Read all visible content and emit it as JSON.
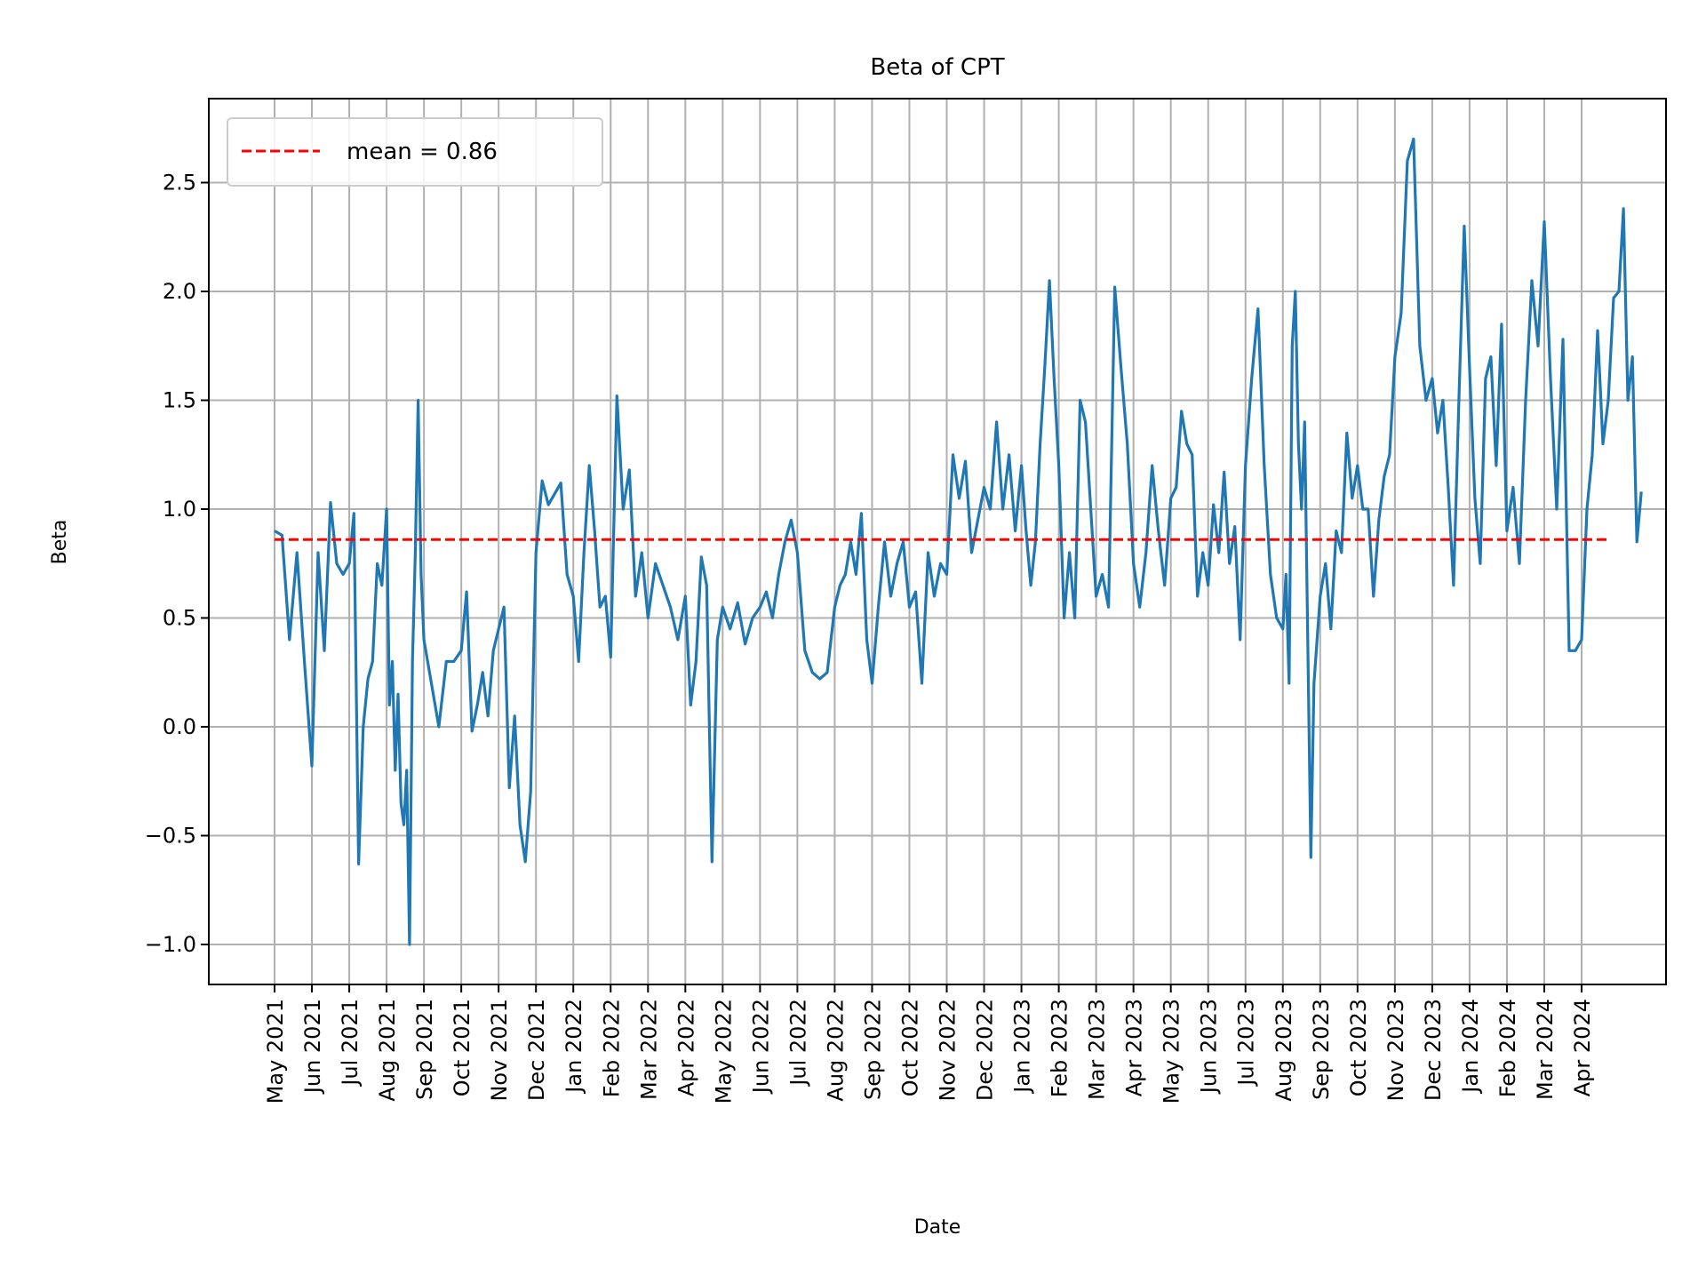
{
  "chart_data": {
    "type": "line",
    "title": "Beta of CPT",
    "xlabel": "Date",
    "ylabel": "Beta",
    "ylim": [
      -1.2,
      2.88
    ],
    "yticks": [
      -1.0,
      -0.5,
      0.0,
      0.5,
      1.0,
      1.5,
      2.0,
      2.5
    ],
    "ytick_labels": [
      "−1.0",
      "−0.5",
      "0.0",
      "0.5",
      "1.0",
      "1.5",
      "2.0",
      "2.5"
    ],
    "xtick_labels": [
      "May 2021",
      "Jun 2021",
      "Jul 2021",
      "Aug 2021",
      "Sep 2021",
      "Oct 2021",
      "Nov 2021",
      "Dec 2021",
      "Jan 2022",
      "Feb 2022",
      "Mar 2022",
      "Apr 2022",
      "May 2022",
      "Jun 2022",
      "Jul 2022",
      "Aug 2022",
      "Sep 2022",
      "Oct 2022",
      "Nov 2022",
      "Dec 2022",
      "Jan 2023",
      "Feb 2023",
      "Mar 2023",
      "Apr 2023",
      "May 2023",
      "Jun 2023",
      "Jul 2023",
      "Aug 2023",
      "Sep 2023",
      "Oct 2023",
      "Nov 2023",
      "Dec 2023",
      "Jan 2024",
      "Feb 2024",
      "Mar 2024",
      "Apr 2024"
    ],
    "grid": true,
    "legend_placement": "top-left",
    "series": [
      {
        "color": "#1f77b4",
        "values_by_month": [
          {
            "month": "2021-05",
            "values": [
              0.9,
              0.88,
              0.4,
              0.8,
              0.3
            ]
          },
          {
            "month": "2021-06",
            "values": [
              -0.18,
              0.8,
              0.35,
              1.03,
              0.75,
              0.7
            ]
          },
          {
            "month": "2021-07",
            "values": [
              0.75,
              0.98,
              -0.63,
              0.0,
              0.22,
              0.3,
              0.75,
              0.65
            ]
          },
          {
            "month": "2021-08",
            "values": [
              1.0,
              0.1,
              0.3,
              -0.2,
              0.15,
              -0.35,
              -0.45,
              -0.2,
              -1.0,
              0.3,
              0.8,
              1.5,
              0.7
            ]
          },
          {
            "month": "2021-09",
            "values": [
              0.4,
              0.2,
              0.0,
              0.3,
              0.3
            ]
          },
          {
            "month": "2021-10",
            "values": [
              0.35,
              0.62,
              -0.02,
              0.1,
              0.25,
              0.05,
              0.35
            ]
          },
          {
            "month": "2021-11",
            "values": [
              0.45,
              0.55,
              -0.28,
              0.05,
              -0.45,
              -0.62,
              -0.3
            ]
          },
          {
            "month": "2021-12",
            "values": [
              0.8,
              1.13,
              1.02,
              1.07,
              1.12,
              0.7
            ]
          },
          {
            "month": "2022-01",
            "values": [
              0.6,
              0.3,
              0.8,
              1.2,
              0.9,
              0.55,
              0.6
            ]
          },
          {
            "month": "2022-02",
            "values": [
              0.32,
              1.52,
              1.0,
              1.18,
              0.6,
              0.8
            ]
          },
          {
            "month": "2022-03",
            "values": [
              0.5,
              0.75,
              0.65,
              0.55,
              0.4
            ]
          },
          {
            "month": "2022-04",
            "values": [
              0.6,
              0.1,
              0.3,
              0.78,
              0.65,
              -0.62,
              0.4
            ]
          },
          {
            "month": "2022-05",
            "values": [
              0.55,
              0.45,
              0.57,
              0.38,
              0.5
            ]
          },
          {
            "month": "2022-06",
            "values": [
              0.55,
              0.62,
              0.5,
              0.7,
              0.85,
              0.95
            ]
          },
          {
            "month": "2022-07",
            "values": [
              0.8,
              0.35,
              0.25,
              0.22,
              0.25
            ]
          },
          {
            "month": "2022-08",
            "values": [
              0.55,
              0.65,
              0.7,
              0.85,
              0.7,
              0.98,
              0.4
            ]
          },
          {
            "month": "2022-09",
            "values": [
              0.2,
              0.55,
              0.85,
              0.6,
              0.75,
              0.85
            ]
          },
          {
            "month": "2022-10",
            "values": [
              0.55,
              0.62,
              0.2,
              0.8,
              0.6,
              0.75
            ]
          },
          {
            "month": "2022-11",
            "values": [
              0.7,
              1.25,
              1.05,
              1.22,
              0.8,
              0.95
            ]
          },
          {
            "month": "2022-12",
            "values": [
              1.1,
              1.0,
              1.4,
              1.0,
              1.25,
              0.9
            ]
          },
          {
            "month": "2023-01",
            "values": [
              1.2,
              0.9,
              0.65,
              0.85,
              1.3,
              1.65,
              2.05,
              1.6
            ]
          },
          {
            "month": "2023-02",
            "values": [
              1.2,
              0.5,
              0.8,
              0.5,
              1.5,
              1.4,
              1.0
            ]
          },
          {
            "month": "2023-03",
            "values": [
              0.6,
              0.7,
              0.55,
              2.02,
              1.65,
              1.3
            ]
          },
          {
            "month": "2023-04",
            "values": [
              0.75,
              0.55,
              0.8,
              1.2,
              0.9,
              0.65
            ]
          },
          {
            "month": "2023-05",
            "values": [
              1.05,
              1.1,
              1.45,
              1.3,
              1.25,
              0.6,
              0.8
            ]
          },
          {
            "month": "2023-06",
            "values": [
              0.65,
              1.02,
              0.8,
              1.17,
              0.75,
              0.92,
              0.4
            ]
          },
          {
            "month": "2023-07",
            "values": [
              1.2,
              1.6,
              1.92,
              1.2,
              0.7,
              0.5
            ]
          },
          {
            "month": "2023-08",
            "values": [
              0.45,
              0.7,
              0.2,
              1.75,
              2.0,
              1.3,
              1.0,
              1.4,
              0.4,
              -0.6,
              0.2,
              0.4
            ]
          },
          {
            "month": "2023-09",
            "values": [
              0.6,
              0.75,
              0.45,
              0.9,
              0.8,
              1.35,
              1.05
            ]
          },
          {
            "month": "2023-10",
            "values": [
              1.2,
              1.0,
              1.0,
              0.6,
              0.95,
              1.15,
              1.25
            ]
          },
          {
            "month": "2023-11",
            "values": [
              1.7,
              1.9,
              2.6,
              2.7,
              1.75,
              1.5
            ]
          },
          {
            "month": "2023-12",
            "values": [
              1.6,
              1.35,
              1.5,
              1.1,
              0.65,
              1.5,
              2.3
            ]
          },
          {
            "month": "2024-01",
            "values": [
              1.65,
              1.05,
              0.75,
              1.6,
              1.7,
              1.2,
              1.85
            ]
          },
          {
            "month": "2024-02",
            "values": [
              0.9,
              1.1,
              0.75,
              1.5,
              2.05,
              1.75
            ]
          },
          {
            "month": "2024-03",
            "values": [
              2.32,
              1.6,
              1.0,
              1.78,
              0.35,
              0.35
            ]
          },
          {
            "month": "2024-04",
            "values": [
              0.4,
              1.0,
              1.25,
              1.82,
              1.3,
              1.5,
              1.97
            ]
          },
          {
            "month": "2024-05",
            "values": [
              2.0,
              2.38,
              1.5,
              1.7,
              0.85,
              1.08
            ]
          }
        ]
      }
    ],
    "mean_line": {
      "value": 0.86,
      "label": "mean = 0.86",
      "color": "#ff0000",
      "style": "dashed"
    }
  }
}
